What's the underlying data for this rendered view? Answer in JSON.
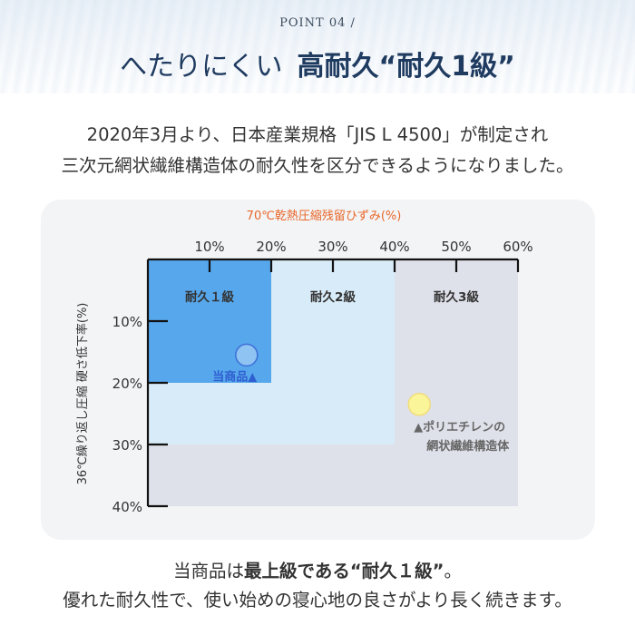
{
  "header": {
    "point_label": "POINT 04 /",
    "title_light": "へたりにくい",
    "title_bold": "高耐久“耐久1級”"
  },
  "intro": {
    "line1": "2020年3月より、日本産業規格「JIS L 4500」が制定され",
    "line2": "三次元網状繊維構造体の耐久性を区分できるようになりました。"
  },
  "chart_data": {
    "type": "scatter",
    "title": "",
    "xlabel": "70℃乾熱圧縮残留ひずみ(%)",
    "ylabel": "36℃繰り返し圧縮 硬さ低下率(%)",
    "x_ticks": [
      "10%",
      "20%",
      "30%",
      "40%",
      "50%",
      "60%"
    ],
    "y_ticks": [
      "10%",
      "20%",
      "30%",
      "40%"
    ],
    "xlim": [
      0,
      60
    ],
    "ylim": [
      0,
      40
    ],
    "x_axis_position": "top",
    "y_axis_direction": "down",
    "grades": [
      {
        "label": "耐久１級",
        "x_max": 20,
        "y_max": 20,
        "color": "#57a7ec"
      },
      {
        "label": "耐久2級",
        "x_max": 40,
        "y_max": 30,
        "color": "#d8ebf8"
      },
      {
        "label": "耐久3級",
        "x_max": 60,
        "y_max": 40,
        "color": "#dfe1ea"
      }
    ],
    "points": [
      {
        "label": "当商品▲",
        "x": 16,
        "y": 15.5,
        "color": "#8ec3f2",
        "stroke": "#3d6fd8",
        "label_color": "#2f5fd0"
      },
      {
        "label": "▲ポリエチレンの\n網状繊維構造体",
        "x": 44,
        "y": 23.5,
        "color": "#fbf59a",
        "stroke": "#f1dc7a",
        "label_color": "#666666"
      }
    ],
    "xlabel_color": "#e8672a",
    "grid": false
  },
  "bottom": {
    "l1_pre": "当商品は",
    "l1_bold": "最上級である“耐久１級”",
    "l1_post": "。",
    "line2": "優れた耐久性で、使い始めの寝心地の良さがより長く続きます。"
  }
}
